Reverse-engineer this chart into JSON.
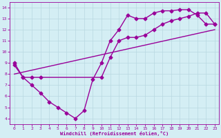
{
  "line1_x": [
    0,
    1,
    2,
    3,
    4,
    5,
    6,
    7,
    8,
    9,
    10,
    11,
    12,
    13,
    14,
    15,
    16,
    17,
    18,
    19,
    20,
    21,
    22,
    23
  ],
  "line1_y": [
    9.0,
    7.7,
    7.0,
    6.3,
    5.5,
    5.0,
    4.5,
    4.0,
    4.7,
    7.5,
    9.0,
    11.0,
    12.0,
    13.3,
    13.0,
    13.0,
    13.5,
    13.7,
    13.7,
    13.8,
    13.8,
    13.3,
    12.5,
    12.5
  ],
  "line2_x": [
    0,
    1,
    2,
    3,
    10,
    11,
    12,
    13,
    14,
    15,
    16,
    17,
    18,
    19,
    20,
    21,
    22,
    23
  ],
  "line2_y": [
    8.8,
    7.7,
    7.7,
    7.7,
    7.7,
    9.5,
    11.0,
    11.3,
    11.3,
    11.5,
    12.0,
    12.5,
    12.8,
    13.0,
    13.2,
    13.5,
    13.5,
    12.5
  ],
  "line3_x": [
    0,
    23
  ],
  "line3_y": [
    8.0,
    12.0
  ],
  "color": "#990099",
  "bg_color": "#d4eef4",
  "grid_color": "#b8d8e0",
  "xlabel": "Windchill (Refroidissement éolien,°C)",
  "xlim": [
    -0.5,
    23.5
  ],
  "ylim": [
    3.5,
    14.5
  ],
  "yticks": [
    4,
    5,
    6,
    7,
    8,
    9,
    10,
    11,
    12,
    13,
    14
  ],
  "xticks": [
    0,
    1,
    2,
    3,
    4,
    5,
    6,
    7,
    8,
    9,
    10,
    11,
    12,
    13,
    14,
    15,
    16,
    17,
    18,
    19,
    20,
    21,
    22,
    23
  ],
  "marker": "D",
  "markersize": 2.5,
  "linewidth": 1.0
}
